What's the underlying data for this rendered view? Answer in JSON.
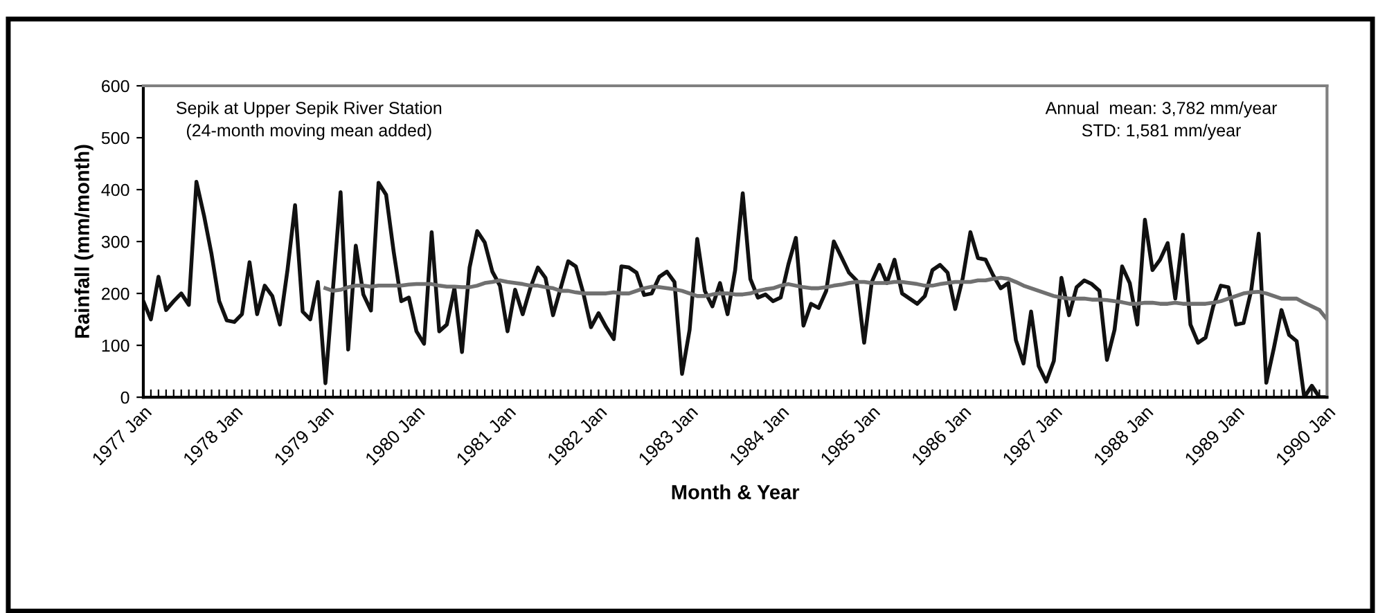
{
  "chart_data": {
    "type": "line",
    "xlabel": "Month & Year",
    "ylabel": "Rainfall (mm/month)",
    "categories": [
      "1977 Jan",
      null,
      null,
      null,
      null,
      null,
      null,
      null,
      null,
      null,
      null,
      null,
      "1978 Jan",
      null,
      null,
      null,
      null,
      null,
      null,
      null,
      null,
      null,
      null,
      null,
      "1979 Jan",
      null,
      null,
      null,
      null,
      null,
      null,
      null,
      null,
      null,
      null,
      null,
      "1980 Jan",
      null,
      null,
      null,
      null,
      null,
      null,
      null,
      null,
      null,
      null,
      null,
      "1981 Jan",
      null,
      null,
      null,
      null,
      null,
      null,
      null,
      null,
      null,
      null,
      null,
      "1982 Jan",
      null,
      null,
      null,
      null,
      null,
      null,
      null,
      null,
      null,
      null,
      null,
      "1983 Jan",
      null,
      null,
      null,
      null,
      null,
      null,
      null,
      null,
      null,
      null,
      null,
      "1984 Jan",
      null,
      null,
      null,
      null,
      null,
      null,
      null,
      null,
      null,
      null,
      null,
      "1985 Jan",
      null,
      null,
      null,
      null,
      null,
      null,
      null,
      null,
      null,
      null,
      null,
      "1986 Jan",
      null,
      null,
      null,
      null,
      null,
      null,
      null,
      null,
      null,
      null,
      null,
      "1987 Jan",
      null,
      null,
      null,
      null,
      null,
      null,
      null,
      null,
      null,
      null,
      null,
      "1988 Jan",
      null,
      null,
      null,
      null,
      null,
      null,
      null,
      null,
      null,
      null,
      null,
      "1989 Jan",
      null,
      null,
      null,
      null,
      null,
      null,
      null,
      null,
      null,
      null,
      null,
      "1990 Jan"
    ],
    "series": [
      {
        "color": "#111111",
        "values": [
          185,
          150,
          232,
          168,
          185,
          200,
          178,
          415,
          350,
          275,
          185,
          148,
          145,
          160,
          260,
          160,
          215,
          195,
          140,
          245,
          370,
          165,
          150,
          222,
          27,
          210,
          395,
          92,
          292,
          198,
          167,
          413,
          390,
          280,
          185,
          192,
          127,
          103,
          318,
          127,
          140,
          210,
          87,
          250,
          320,
          298,
          242,
          215,
          127,
          207,
          160,
          210,
          250,
          230,
          158,
          210,
          262,
          252,
          200,
          135,
          162,
          135,
          112,
          252,
          250,
          240,
          197,
          200,
          232,
          242,
          222,
          45,
          130,
          305,
          205,
          175,
          220,
          160,
          245,
          393,
          228,
          192,
          198,
          185,
          192,
          255,
          307,
          138,
          180,
          172,
          205,
          300,
          270,
          240,
          225,
          105,
          222,
          255,
          220,
          265,
          200,
          190,
          180,
          195,
          245,
          255,
          240,
          170,
          230,
          318,
          268,
          265,
          235,
          210,
          220,
          110,
          65,
          165,
          60,
          30,
          70,
          230,
          158,
          212,
          225,
          218,
          205,
          72,
          130,
          252,
          220,
          140,
          342,
          245,
          265,
          297,
          190,
          313,
          140,
          105,
          115,
          175,
          215,
          212,
          140,
          143,
          205,
          315,
          28,
          95,
          168,
          120,
          108,
          0,
          22,
          0,
          0
        ]
      },
      {
        "color": "#707070",
        "values": [
          null,
          null,
          null,
          null,
          null,
          null,
          null,
          null,
          null,
          null,
          null,
          null,
          null,
          null,
          null,
          null,
          null,
          null,
          null,
          null,
          null,
          null,
          null,
          null,
          210,
          205,
          207,
          212,
          215,
          215,
          213,
          215,
          215,
          215,
          215,
          217,
          218,
          218,
          218,
          215,
          213,
          213,
          212,
          212,
          215,
          220,
          222,
          225,
          222,
          220,
          218,
          215,
          215,
          212,
          210,
          205,
          205,
          202,
          200,
          200,
          200,
          200,
          202,
          200,
          200,
          205,
          210,
          213,
          212,
          210,
          208,
          205,
          200,
          195,
          195,
          198,
          200,
          200,
          198,
          198,
          200,
          205,
          208,
          210,
          215,
          218,
          215,
          212,
          210,
          210,
          212,
          215,
          217,
          220,
          222,
          222,
          220,
          220,
          220,
          222,
          222,
          220,
          218,
          215,
          215,
          218,
          220,
          222,
          222,
          222,
          225,
          225,
          228,
          230,
          228,
          222,
          215,
          210,
          205,
          200,
          195,
          192,
          190,
          190,
          190,
          188,
          188,
          187,
          185,
          183,
          180,
          180,
          182,
          182,
          180,
          180,
          182,
          180,
          180,
          180,
          180,
          182,
          185,
          190,
          195,
          200,
          202,
          203,
          200,
          195,
          190,
          190,
          190,
          182,
          175,
          168,
          150
        ]
      }
    ],
    "ylim": [
      0,
      600
    ],
    "yticks": [
      0,
      100,
      200,
      300,
      400,
      500,
      600
    ],
    "grid": false,
    "legend": false,
    "marker": "none",
    "line_style": "solid",
    "annotations": [
      "Sepik at Upper Sepik River Station\n(24-month moving mean added)",
      "Annual  mean: 3,782 mm/year\nSTD: 1,581 mm/year"
    ]
  }
}
